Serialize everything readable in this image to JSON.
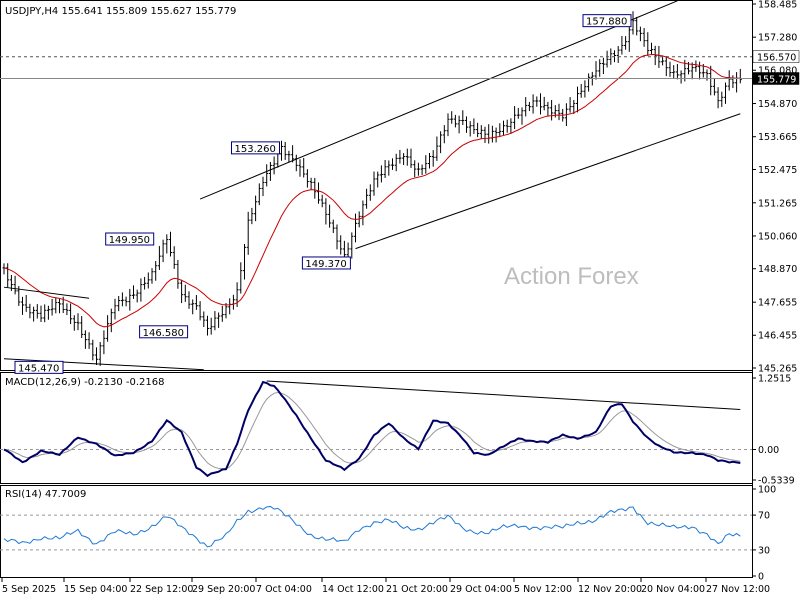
{
  "chart_data": [
    {
      "type": "line",
      "title": "USDJPY,H4 155.641 155.809 155.627 155.779",
      "watermark": "Action Forex",
      "ylim": [
        145.265,
        158.485
      ],
      "y_ticks": [
        "158.485",
        "157.280",
        "156.080",
        "154.870",
        "153.665",
        "152.475",
        "151.265",
        "150.060",
        "148.870",
        "147.655",
        "146.455",
        "145.265"
      ],
      "x_ticks": [
        "5 Sep 2025",
        "15 Sep 04:00",
        "22 Sep 12:00",
        "29 Sep 20:00",
        "7 Oct 04:00",
        "14 Oct 12:00",
        "21 Oct 20:00",
        "29 Oct 04:00",
        "5 Nov 12:00",
        "12 Nov 20:00",
        "20 Nov 04:00",
        "27 Nov 12:00"
      ],
      "price_labels": [
        {
          "text": "145.470",
          "value": 145.47,
          "x_index": 10
        },
        {
          "text": "146.580",
          "value": 146.58,
          "x_index": 48
        },
        {
          "text": "149.950",
          "value": 149.95,
          "x_index": 41
        },
        {
          "text": "153.260",
          "value": 153.26,
          "x_index": 75
        },
        {
          "text": "149.370",
          "value": 149.37,
          "x_index": 92
        },
        {
          "text": "157.880",
          "value": 157.88,
          "x_index": 170
        }
      ],
      "horizontal_levels": [
        {
          "label": "156.570",
          "value": 156.57,
          "style": "dashed",
          "highlight": "#ffffff"
        },
        {
          "label": "155.779",
          "value": 155.779,
          "style": "solid",
          "highlight": "#000000"
        }
      ],
      "key_points": [
        [
          0,
          148.8
        ],
        [
          5,
          147.6
        ],
        [
          10,
          147.1
        ],
        [
          15,
          147.6
        ],
        [
          20,
          146.9
        ],
        [
          25,
          145.5
        ],
        [
          30,
          147.6
        ],
        [
          35,
          148.0
        ],
        [
          40,
          148.6
        ],
        [
          44,
          149.95
        ],
        [
          48,
          148.0
        ],
        [
          52,
          147.5
        ],
        [
          55,
          146.6
        ],
        [
          60,
          147.4
        ],
        [
          63,
          148.1
        ],
        [
          66,
          150.6
        ],
        [
          70,
          152.0
        ],
        [
          73,
          152.7
        ],
        [
          75,
          153.26
        ],
        [
          79,
          152.8
        ],
        [
          83,
          151.9
        ],
        [
          87,
          150.8
        ],
        [
          92,
          149.37
        ],
        [
          96,
          150.9
        ],
        [
          100,
          152.0
        ],
        [
          104,
          152.6
        ],
        [
          108,
          153.1
        ],
        [
          112,
          152.4
        ],
        [
          116,
          152.9
        ],
        [
          120,
          154.3
        ],
        [
          124,
          154.3
        ],
        [
          127,
          153.9
        ],
        [
          131,
          153.6
        ],
        [
          135,
          154.0
        ],
        [
          139,
          154.6
        ],
        [
          143,
          154.9
        ],
        [
          147,
          154.6
        ],
        [
          151,
          154.5
        ],
        [
          155,
          155.2
        ],
        [
          160,
          156.0
        ],
        [
          164,
          156.6
        ],
        [
          167,
          157.0
        ],
        [
          170,
          157.88
        ],
        [
          174,
          156.8
        ],
        [
          177,
          156.4
        ],
        [
          181,
          156.0
        ],
        [
          186,
          156.2
        ],
        [
          190,
          155.8
        ],
        [
          193,
          154.9
        ],
        [
          196,
          155.8
        ]
      ],
      "moving_average_color": "#cc0000",
      "channels": [
        {
          "from": [
            53,
            151.4
          ],
          "to": [
            182,
            158.6
          ]
        },
        {
          "from": [
            95,
            149.6
          ],
          "to": [
            199,
            154.5
          ]
        },
        {
          "from": [
            0,
            148.2
          ],
          "to": [
            23,
            147.8
          ]
        },
        {
          "from": [
            0,
            145.6
          ],
          "to": [
            54,
            145.2
          ]
        }
      ]
    },
    {
      "type": "line",
      "title": "MACD(12,26,9) -0.2130 -0.2168",
      "ylim": [
        -0.5339,
        1.2515
      ],
      "y_ticks": [
        "1.2515",
        "0.00",
        "-0.5339"
      ],
      "key_points": [
        [
          0,
          0.0
        ],
        [
          5,
          -0.22
        ],
        [
          10,
          -0.02
        ],
        [
          15,
          -0.1
        ],
        [
          20,
          0.22
        ],
        [
          25,
          0.1
        ],
        [
          30,
          -0.12
        ],
        [
          35,
          -0.05
        ],
        [
          40,
          0.15
        ],
        [
          44,
          0.5
        ],
        [
          48,
          0.3
        ],
        [
          52,
          -0.3
        ],
        [
          55,
          -0.45
        ],
        [
          60,
          -0.35
        ],
        [
          63,
          0.1
        ],
        [
          66,
          0.7
        ],
        [
          70,
          1.18
        ],
        [
          73,
          1.1
        ],
        [
          75,
          0.95
        ],
        [
          79,
          0.6
        ],
        [
          83,
          0.2
        ],
        [
          87,
          -0.2
        ],
        [
          92,
          -0.35
        ],
        [
          96,
          -0.15
        ],
        [
          100,
          0.25
        ],
        [
          104,
          0.45
        ],
        [
          108,
          0.2
        ],
        [
          112,
          0.02
        ],
        [
          116,
          0.5
        ],
        [
          120,
          0.45
        ],
        [
          124,
          0.2
        ],
        [
          127,
          -0.05
        ],
        [
          131,
          -0.1
        ],
        [
          135,
          0.05
        ],
        [
          139,
          0.2
        ],
        [
          143,
          0.15
        ],
        [
          147,
          0.12
        ],
        [
          151,
          0.25
        ],
        [
          155,
          0.2
        ],
        [
          160,
          0.3
        ],
        [
          164,
          0.75
        ],
        [
          167,
          0.8
        ],
        [
          170,
          0.5
        ],
        [
          174,
          0.2
        ],
        [
          177,
          0.05
        ],
        [
          181,
          -0.05
        ],
        [
          186,
          -0.05
        ],
        [
          190,
          -0.1
        ],
        [
          193,
          -0.2
        ],
        [
          196,
          -0.22
        ]
      ],
      "main_color": "#000066",
      "signal_color": "#999999",
      "trendline": {
        "from": [
          71,
          1.2
        ],
        "to": [
          199,
          0.7
        ]
      }
    },
    {
      "type": "line",
      "title": "RSI(14) 47.7009",
      "ylim": [
        0,
        100
      ],
      "y_ticks": [
        "100",
        "70",
        "30",
        "0"
      ],
      "levels": [
        70,
        30
      ],
      "key_points": [
        [
          0,
          40
        ],
        [
          5,
          38
        ],
        [
          10,
          45
        ],
        [
          15,
          42
        ],
        [
          20,
          52
        ],
        [
          25,
          38
        ],
        [
          30,
          50
        ],
        [
          35,
          48
        ],
        [
          40,
          58
        ],
        [
          44,
          68
        ],
        [
          48,
          55
        ],
        [
          52,
          45
        ],
        [
          55,
          35
        ],
        [
          60,
          45
        ],
        [
          63,
          62
        ],
        [
          66,
          75
        ],
        [
          70,
          80
        ],
        [
          73,
          78
        ],
        [
          75,
          72
        ],
        [
          79,
          60
        ],
        [
          83,
          48
        ],
        [
          87,
          42
        ],
        [
          92,
          38
        ],
        [
          96,
          55
        ],
        [
          100,
          62
        ],
        [
          104,
          63
        ],
        [
          108,
          55
        ],
        [
          112,
          55
        ],
        [
          116,
          62
        ],
        [
          120,
          67
        ],
        [
          124,
          55
        ],
        [
          127,
          52
        ],
        [
          131,
          50
        ],
        [
          135,
          55
        ],
        [
          139,
          58
        ],
        [
          143,
          57
        ],
        [
          147,
          55
        ],
        [
          151,
          55
        ],
        [
          155,
          62
        ],
        [
          160,
          65
        ],
        [
          164,
          72
        ],
        [
          167,
          75
        ],
        [
          170,
          80
        ],
        [
          174,
          62
        ],
        [
          177,
          58
        ],
        [
          181,
          55
        ],
        [
          186,
          58
        ],
        [
          190,
          48
        ],
        [
          193,
          35
        ],
        [
          196,
          47
        ]
      ],
      "color": "#1e78d4"
    }
  ],
  "colors": {
    "background": "#ffffff",
    "candle": "#000000",
    "grid_dash": "#999999",
    "axis": "#000000",
    "label_border": "#000080"
  }
}
